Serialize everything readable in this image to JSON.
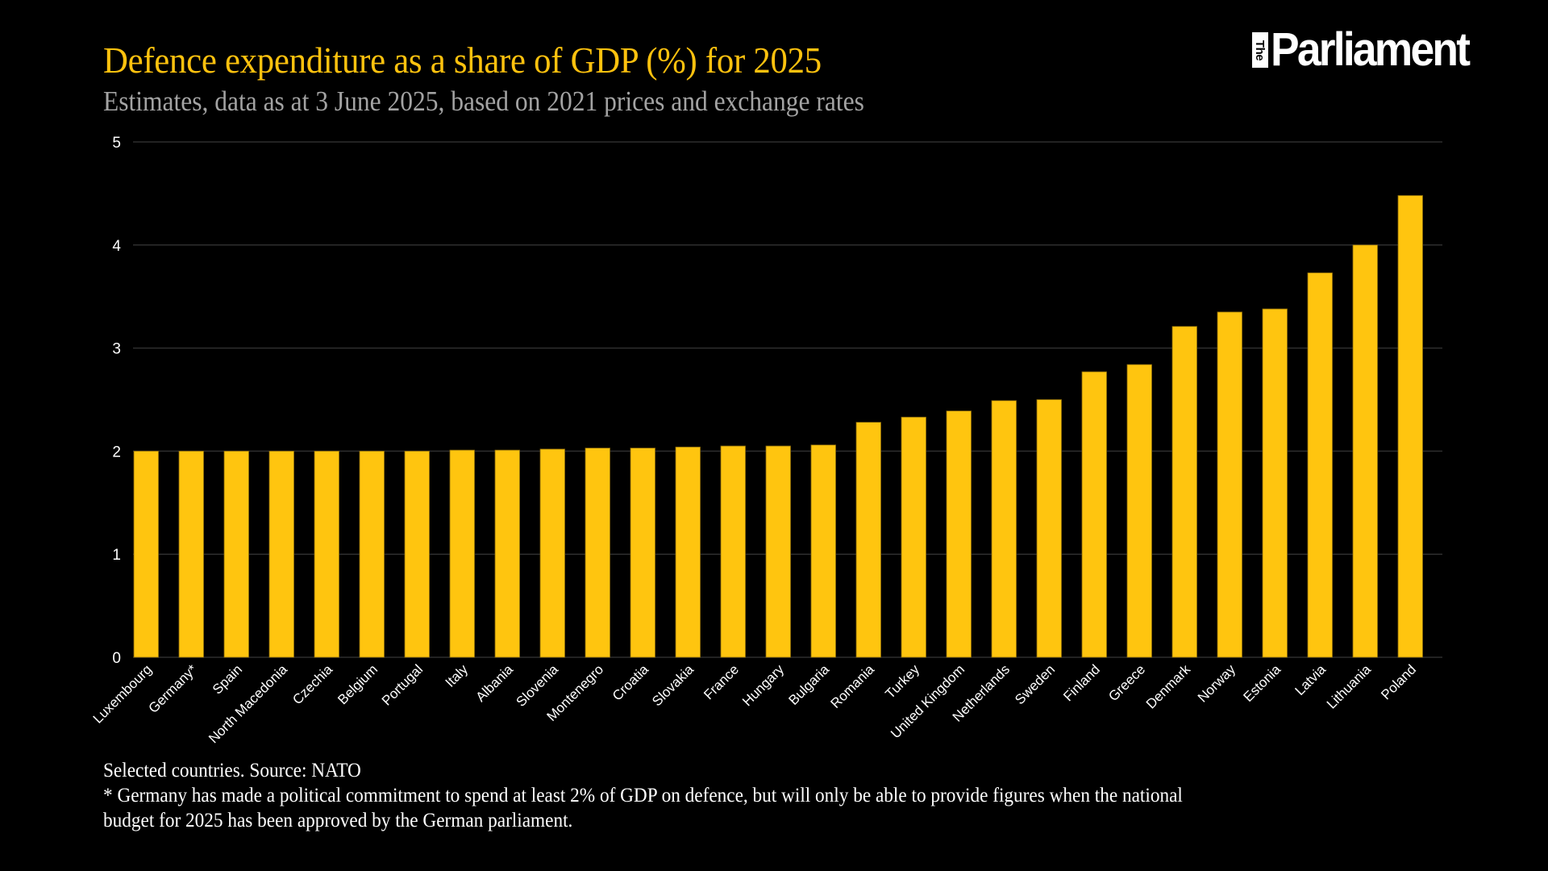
{
  "header": {
    "title": "Defence expenditure as a share of GDP (%) for 2025",
    "subtitle": "Estimates, data as at 3 June 2025, based on 2021 prices and exchange rates"
  },
  "logo": {
    "prefix": "The",
    "name": "Parliament"
  },
  "footer": {
    "source": "Selected countries. Source: NATO",
    "note_line1": "* Germany has made a political commitment to spend at least 2% of GDP on defence, but will only be able to provide figures when the national",
    "note_line2": "budget for 2025 has been approved by the German parliament."
  },
  "colors": {
    "bar": "#FFC50F",
    "bar_outline": "#8A6A0A",
    "title": "#FFC20E",
    "subtitle": "#A3A3A3",
    "grid": "#2E2E2E",
    "background": "#000000",
    "text": "#FFFFFF"
  },
  "chart_data": {
    "type": "bar",
    "title": "Defence expenditure as a share of GDP (%) for 2025",
    "subtitle": "Estimates, data as at 3 June 2025, based on 2021 prices and exchange rates",
    "xlabel": "",
    "ylabel": "",
    "ylim": [
      0,
      5
    ],
    "yticks": [
      0,
      1,
      2,
      3,
      4,
      5
    ],
    "grid": true,
    "legend": "none",
    "categories": [
      "Luxembourg",
      "Germany*",
      "Spain",
      "North Macedonia",
      "Czechia",
      "Belgium",
      "Portugal",
      "Italy",
      "Albania",
      "Slovenia",
      "Montenegro",
      "Croatia",
      "Slovakia",
      "France",
      "Hungary",
      "Bulgaria",
      "Romania",
      "Turkey",
      "United Kingdom",
      "Netherlands",
      "Sweden",
      "Finland",
      "Greece",
      "Denmark",
      "Norway",
      "Estonia",
      "Latvia",
      "Lithuania",
      "Poland"
    ],
    "values": [
      2.0,
      2.0,
      2.0,
      2.0,
      2.0,
      2.0,
      2.0,
      2.01,
      2.01,
      2.02,
      2.03,
      2.03,
      2.04,
      2.05,
      2.05,
      2.06,
      2.28,
      2.33,
      2.39,
      2.49,
      2.5,
      2.77,
      2.84,
      3.21,
      3.35,
      3.38,
      3.73,
      4.0,
      4.48
    ]
  }
}
